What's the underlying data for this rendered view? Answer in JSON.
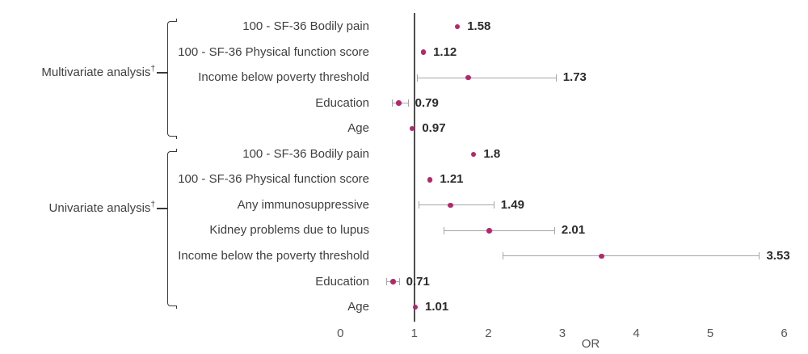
{
  "chart_data": {
    "type": "scatter",
    "subtype": "forest-dot-plot",
    "xlabel": "OR",
    "x_ticks": [
      0,
      1,
      2,
      3,
      4,
      5,
      6
    ],
    "xlim": [
      0,
      6
    ],
    "reference_line_x": 1,
    "grid": false,
    "legend": false,
    "groups": [
      {
        "label": "Multivariate analysis",
        "dagger": "†",
        "items": [
          {
            "label": "100 - SF-36 Bodily pain",
            "or": 1.58,
            "display": "1.58",
            "ci": null
          },
          {
            "label": "100 - SF-36 Physical function score",
            "or": 1.12,
            "display": "1.12",
            "ci": null
          },
          {
            "label": "Income below poverty threshold",
            "or": 1.73,
            "display": "1.73",
            "ci": [
              1.03,
              2.91
            ]
          },
          {
            "label": "Education",
            "or": 0.79,
            "display": "0.79",
            "ci": [
              0.7,
              0.91
            ]
          },
          {
            "label": "Age",
            "or": 0.97,
            "display": "0.97",
            "ci": null
          }
        ]
      },
      {
        "label": "Univariate analysis",
        "dagger": "†",
        "items": [
          {
            "label": "100 - SF-36 Bodily pain",
            "or": 1.8,
            "display": "1.8",
            "ci": null
          },
          {
            "label": "100 - SF-36 Physical function score",
            "or": 1.21,
            "display": "1.21",
            "ci": null
          },
          {
            "label": "Any immunosuppressive",
            "or": 1.49,
            "display": "1.49",
            "ci": [
              1.06,
              2.07
            ]
          },
          {
            "label": "Kidney problems due to lupus",
            "or": 2.01,
            "display": "2.01",
            "ci": [
              1.39,
              2.89
            ]
          },
          {
            "label": "Income below the poverty threshold",
            "or": 3.53,
            "display": "3.53",
            "ci": [
              2.19,
              5.66
            ]
          },
          {
            "label": "Education",
            "or": 0.71,
            "display": "0.71",
            "ci": [
              0.62,
              0.79
            ]
          },
          {
            "label": "Age",
            "or": 1.01,
            "display": "1.01",
            "ci": null
          }
        ]
      }
    ]
  },
  "colors": {
    "dot": "#b4276d",
    "ci": "#a6a6a6",
    "reference_line": "#4f4f4f",
    "bracket": "#3a3a3a",
    "row_label": "#3f3f3f",
    "value_label": "#2b2b2b",
    "tick_label": "#555555",
    "background": "#ffffff"
  }
}
